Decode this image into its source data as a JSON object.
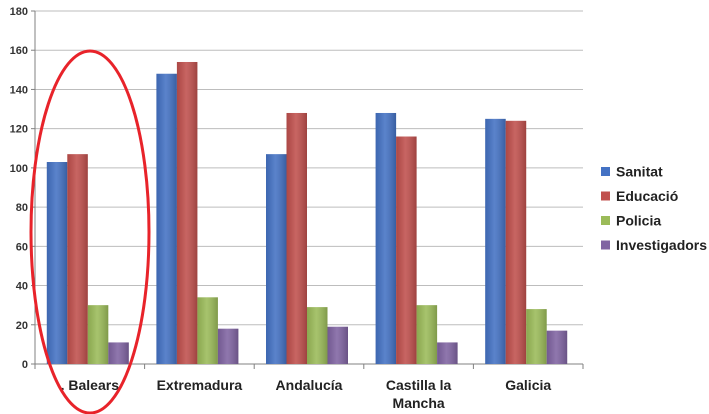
{
  "chart_data": {
    "type": "bar",
    "title": "",
    "xlabel": "",
    "ylabel": "",
    "ylim": [
      0,
      180
    ],
    "yticks": [
      0,
      20,
      40,
      60,
      80,
      100,
      120,
      140,
      160,
      180
    ],
    "grid": true,
    "legend_position": "right",
    "categories": [
      ". Balears",
      "Extremadura",
      "Andalucía",
      "Castilla la Mancha",
      "Galicia"
    ],
    "category_lines": [
      [
        ". Balears"
      ],
      [
        "Extremadura"
      ],
      [
        "Andalucía"
      ],
      [
        "Castilla la",
        "Mancha"
      ],
      [
        "Galicia"
      ]
    ],
    "series": [
      {
        "name": "Sanitat",
        "color": "#4472C4",
        "values": [
          103,
          148,
          107,
          128,
          125
        ]
      },
      {
        "name": "Educació",
        "color": "#C0504D",
        "values": [
          107,
          154,
          128,
          116,
          124
        ]
      },
      {
        "name": "Policia",
        "color": "#9BBB59",
        "values": [
          30,
          34,
          29,
          30,
          28
        ]
      },
      {
        "name": "Investigadors",
        "color": "#8064A2",
        "values": [
          11,
          18,
          19,
          11,
          17
        ]
      }
    ],
    "annotation": {
      "type": "ellipse",
      "target": ". Balears",
      "color": "#E8232A"
    }
  }
}
